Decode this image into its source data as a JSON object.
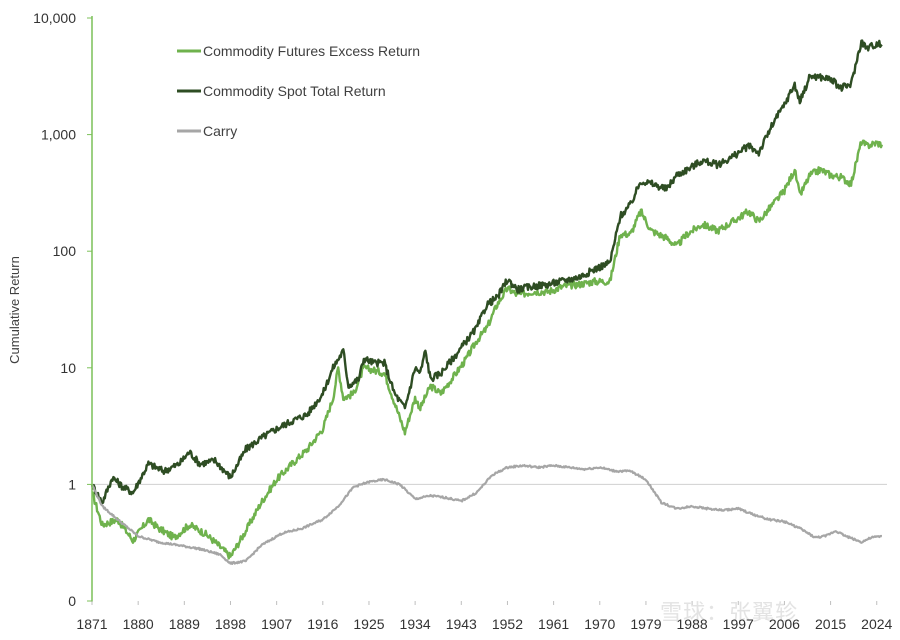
{
  "watermark": "雪球：张翼轸",
  "chart_data": {
    "type": "line",
    "yscale": "log",
    "ylabel": "Cumulative Return",
    "xlabel": "",
    "xlim": [
      1871,
      2026
    ],
    "ylim": [
      0.1,
      10000
    ],
    "y_ticks": [
      {
        "value": 10000,
        "label": "10,000"
      },
      {
        "value": 1000,
        "label": "1,000"
      },
      {
        "value": 100,
        "label": "100"
      },
      {
        "value": 10,
        "label": "10"
      },
      {
        "value": 1,
        "label": "1"
      },
      {
        "value": 0.1,
        "label": "0"
      }
    ],
    "x_ticks": [
      "1871",
      "1880",
      "1889",
      "1898",
      "1907",
      "1916",
      "1925",
      "1934",
      "1943",
      "1952",
      "1961",
      "1970",
      "1979",
      "1988",
      "1997",
      "2006",
      "2015",
      "2024"
    ],
    "reference_line": 1,
    "legend_position": "top-left",
    "series": [
      {
        "name": "Commodity Futures Excess Return",
        "color": "#6fb24d",
        "points": [
          [
            1871,
            0.85
          ],
          [
            1873,
            0.45
          ],
          [
            1876,
            0.5
          ],
          [
            1879,
            0.33
          ],
          [
            1882,
            0.5
          ],
          [
            1884,
            0.42
          ],
          [
            1887,
            0.35
          ],
          [
            1890,
            0.45
          ],
          [
            1893,
            0.38
          ],
          [
            1895,
            0.32
          ],
          [
            1898,
            0.24
          ],
          [
            1901,
            0.4
          ],
          [
            1904,
            0.7
          ],
          [
            1907,
            1.1
          ],
          [
            1910,
            1.5
          ],
          [
            1913,
            2.0
          ],
          [
            1916,
            3.0
          ],
          [
            1918,
            5.5
          ],
          [
            1919,
            10.0
          ],
          [
            1920,
            5.5
          ],
          [
            1922,
            6.0
          ],
          [
            1924,
            10.0
          ],
          [
            1926,
            9.5
          ],
          [
            1928,
            9.0
          ],
          [
            1930,
            5.0
          ],
          [
            1932,
            2.8
          ],
          [
            1934,
            5.5
          ],
          [
            1935,
            4.5
          ],
          [
            1937,
            7.0
          ],
          [
            1939,
            6.0
          ],
          [
            1942,
            9.0
          ],
          [
            1944,
            12.0
          ],
          [
            1946,
            17.0
          ],
          [
            1948,
            22.0
          ],
          [
            1950,
            35.0
          ],
          [
            1952,
            48.0
          ],
          [
            1954,
            42.0
          ],
          [
            1957,
            45.0
          ],
          [
            1960,
            45.0
          ],
          [
            1963,
            50.0
          ],
          [
            1966,
            52.0
          ],
          [
            1969,
            55.0
          ],
          [
            1972,
            55.0
          ],
          [
            1974,
            140.0
          ],
          [
            1976,
            140.0
          ],
          [
            1978,
            220.0
          ],
          [
            1980,
            150.0
          ],
          [
            1983,
            130.0
          ],
          [
            1985,
            110.0
          ],
          [
            1987,
            140.0
          ],
          [
            1990,
            170.0
          ],
          [
            1993,
            150.0
          ],
          [
            1996,
            180.0
          ],
          [
            1999,
            220.0
          ],
          [
            2001,
            180.0
          ],
          [
            2004,
            260.0
          ],
          [
            2006,
            330.0
          ],
          [
            2008,
            500.0
          ],
          [
            2009,
            300.0
          ],
          [
            2011,
            450.0
          ],
          [
            2013,
            500.0
          ],
          [
            2015,
            450.0
          ],
          [
            2017,
            430.0
          ],
          [
            2019,
            380.0
          ],
          [
            2021,
            870.0
          ],
          [
            2022,
            800.0
          ],
          [
            2024,
            850.0
          ],
          [
            2025,
            820.0
          ]
        ]
      },
      {
        "name": "Commodity Spot Total Return",
        "color": "#2e4d23",
        "points": [
          [
            1871,
            1.0
          ],
          [
            1873,
            0.7
          ],
          [
            1875,
            1.15
          ],
          [
            1877,
            0.95
          ],
          [
            1879,
            0.85
          ],
          [
            1882,
            1.5
          ],
          [
            1885,
            1.3
          ],
          [
            1888,
            1.5
          ],
          [
            1890,
            1.9
          ],
          [
            1892,
            1.5
          ],
          [
            1895,
            1.6
          ],
          [
            1898,
            1.15
          ],
          [
            1901,
            2.0
          ],
          [
            1904,
            2.5
          ],
          [
            1907,
            3.0
          ],
          [
            1910,
            3.5
          ],
          [
            1913,
            4.0
          ],
          [
            1916,
            6.0
          ],
          [
            1918,
            10.0
          ],
          [
            1920,
            14.0
          ],
          [
            1921,
            7.0
          ],
          [
            1923,
            8.0
          ],
          [
            1924,
            12.0
          ],
          [
            1926,
            11.0
          ],
          [
            1928,
            11.0
          ],
          [
            1930,
            6.0
          ],
          [
            1932,
            4.5
          ],
          [
            1934,
            10.0
          ],
          [
            1935,
            9.0
          ],
          [
            1936,
            14.0
          ],
          [
            1937,
            8.0
          ],
          [
            1939,
            9.0
          ],
          [
            1942,
            13.0
          ],
          [
            1944,
            17.0
          ],
          [
            1946,
            22.0
          ],
          [
            1948,
            35.0
          ],
          [
            1950,
            40.0
          ],
          [
            1952,
            57.0
          ],
          [
            1954,
            47.0
          ],
          [
            1957,
            50.0
          ],
          [
            1960,
            52.0
          ],
          [
            1963,
            56.0
          ],
          [
            1966,
            60.0
          ],
          [
            1969,
            70.0
          ],
          [
            1972,
            80.0
          ],
          [
            1974,
            200.0
          ],
          [
            1976,
            250.0
          ],
          [
            1978,
            400.0
          ],
          [
            1980,
            380.0
          ],
          [
            1983,
            340.0
          ],
          [
            1985,
            450.0
          ],
          [
            1987,
            500.0
          ],
          [
            1990,
            600.0
          ],
          [
            1993,
            550.0
          ],
          [
            1996,
            650.0
          ],
          [
            1999,
            800.0
          ],
          [
            2001,
            700.0
          ],
          [
            2004,
            1300.0
          ],
          [
            2006,
            1800.0
          ],
          [
            2008,
            2700.0
          ],
          [
            2009,
            1900.0
          ],
          [
            2011,
            3200.0
          ],
          [
            2013,
            3100.0
          ],
          [
            2015,
            3000.0
          ],
          [
            2017,
            2500.0
          ],
          [
            2019,
            2700.0
          ],
          [
            2021,
            6300.0
          ],
          [
            2022,
            5500.0
          ],
          [
            2024,
            6000.0
          ],
          [
            2025,
            5900.0
          ]
        ]
      },
      {
        "name": "Carry",
        "color": "#a6a6a6",
        "points": [
          [
            1871,
            1.0
          ],
          [
            1873,
            0.65
          ],
          [
            1876,
            0.5
          ],
          [
            1880,
            0.36
          ],
          [
            1884,
            0.32
          ],
          [
            1888,
            0.3
          ],
          [
            1892,
            0.28
          ],
          [
            1896,
            0.25
          ],
          [
            1898,
            0.21
          ],
          [
            1901,
            0.22
          ],
          [
            1904,
            0.3
          ],
          [
            1908,
            0.38
          ],
          [
            1912,
            0.42
          ],
          [
            1916,
            0.5
          ],
          [
            1919,
            0.65
          ],
          [
            1922,
            0.95
          ],
          [
            1925,
            1.05
          ],
          [
            1928,
            1.1
          ],
          [
            1931,
            1.0
          ],
          [
            1934,
            0.75
          ],
          [
            1937,
            0.8
          ],
          [
            1940,
            0.77
          ],
          [
            1943,
            0.72
          ],
          [
            1946,
            0.85
          ],
          [
            1949,
            1.2
          ],
          [
            1952,
            1.4
          ],
          [
            1955,
            1.45
          ],
          [
            1958,
            1.4
          ],
          [
            1961,
            1.45
          ],
          [
            1964,
            1.4
          ],
          [
            1967,
            1.35
          ],
          [
            1970,
            1.4
          ],
          [
            1973,
            1.3
          ],
          [
            1976,
            1.3
          ],
          [
            1979,
            1.1
          ],
          [
            1982,
            0.7
          ],
          [
            1985,
            0.62
          ],
          [
            1988,
            0.65
          ],
          [
            1991,
            0.62
          ],
          [
            1994,
            0.6
          ],
          [
            1997,
            0.62
          ],
          [
            2000,
            0.55
          ],
          [
            2003,
            0.5
          ],
          [
            2006,
            0.48
          ],
          [
            2009,
            0.42
          ],
          [
            2012,
            0.35
          ],
          [
            2014,
            0.36
          ],
          [
            2016,
            0.4
          ],
          [
            2018,
            0.36
          ],
          [
            2021,
            0.32
          ],
          [
            2023,
            0.35
          ],
          [
            2025,
            0.36
          ]
        ]
      }
    ]
  }
}
